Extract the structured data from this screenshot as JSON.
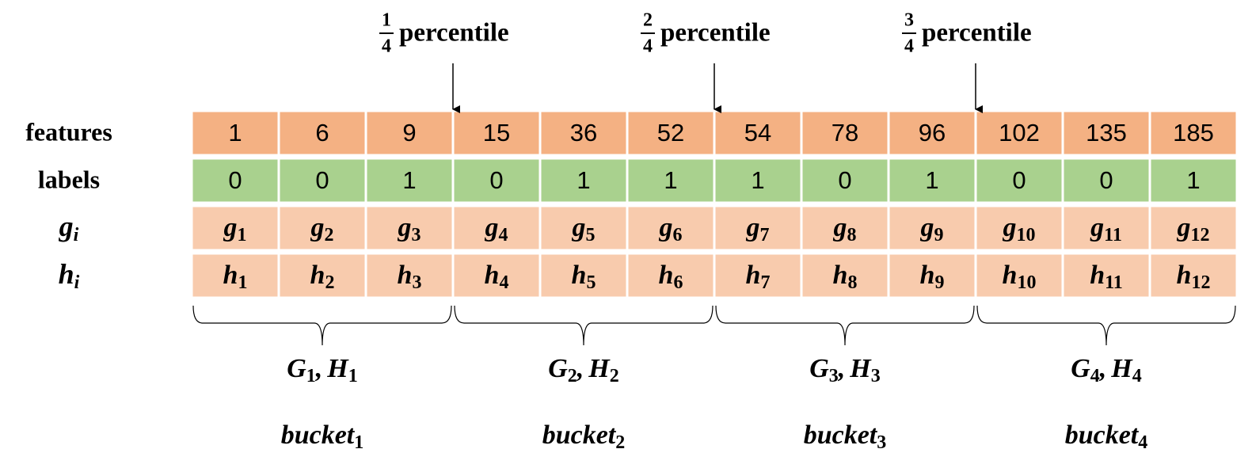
{
  "percentiles": [
    {
      "numerator": "1",
      "denominator": "4",
      "label": "percentile"
    },
    {
      "numerator": "2",
      "denominator": "4",
      "label": "percentile"
    },
    {
      "numerator": "3",
      "denominator": "4",
      "label": "percentile"
    }
  ],
  "rows": [
    {
      "label": "features",
      "cells": [
        1,
        6,
        9,
        15,
        36,
        52,
        54,
        78,
        96,
        102,
        135,
        185
      ]
    },
    {
      "label": "labels",
      "cells": [
        0,
        0,
        1,
        0,
        1,
        1,
        1,
        0,
        1,
        0,
        0,
        1
      ]
    },
    {
      "symbol": "g",
      "subscript": "i",
      "cells": [
        "1",
        "2",
        "3",
        "4",
        "5",
        "6",
        "7",
        "8",
        "9",
        "10",
        "11",
        "12"
      ]
    },
    {
      "symbol": "h",
      "subscript": "i",
      "cells": [
        "1",
        "2",
        "3",
        "4",
        "5",
        "6",
        "7",
        "8",
        "9",
        "10",
        "11",
        "12"
      ]
    }
  ],
  "groups": [
    {
      "gradient": "G",
      "hessian": "H",
      "separator": ",",
      "subscript": "1",
      "bucket": "bucket"
    },
    {
      "gradient": "G",
      "hessian": "H",
      "separator": ",",
      "subscript": "2",
      "bucket": "bucket"
    },
    {
      "gradient": "G",
      "hessian": "H",
      "separator": ",",
      "subscript": "3",
      "bucket": "bucket"
    },
    {
      "gradient": "G",
      "hessian": "H",
      "separator": ",",
      "subscript": "4",
      "bucket": "bucket"
    }
  ]
}
